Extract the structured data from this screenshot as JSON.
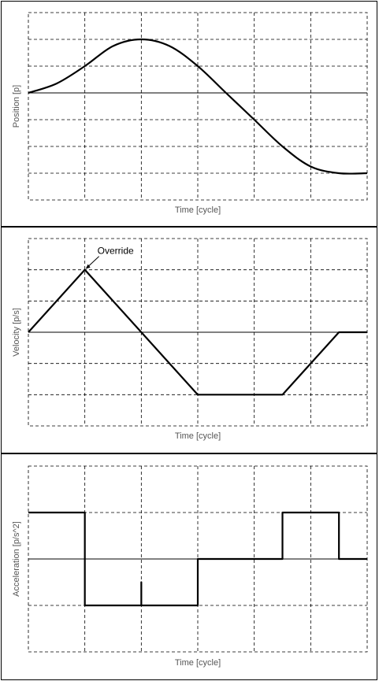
{
  "chart_data": [
    {
      "type": "line",
      "xlabel": "Time [cycle]",
      "ylabel": "Position [p]",
      "xlim": [
        0,
        6
      ],
      "ylim": [
        -4,
        3
      ],
      "grid": true,
      "series": [
        {
          "x": [
            0,
            0.5,
            1,
            1.5,
            2,
            2.5,
            3,
            3.5,
            4,
            4.5,
            5,
            5.5,
            6
          ],
          "y": [
            0,
            0.35,
            1,
            1.75,
            2,
            1.75,
            1,
            0,
            -1,
            -2,
            -2.75,
            -3,
            -3
          ]
        }
      ]
    },
    {
      "type": "line",
      "xlabel": "Time [cycle]",
      "ylabel": "Velocity [p/s]",
      "xlim": [
        0,
        6
      ],
      "ylim": [
        -3,
        3
      ],
      "grid": true,
      "series": [
        {
          "x": [
            0,
            1,
            2,
            3,
            4.5,
            5.5,
            6
          ],
          "y": [
            0,
            2,
            0,
            -2,
            -2,
            0,
            0
          ]
        }
      ],
      "annotations": [
        {
          "text": "Override",
          "x": 1,
          "y": 2
        }
      ]
    },
    {
      "type": "line",
      "xlabel": "Time [cycle]",
      "ylabel": "Acceleration [p/s^2]",
      "xlim": [
        0,
        6
      ],
      "ylim": [
        -2,
        2
      ],
      "grid": true,
      "series": [
        {
          "x": [
            0,
            1,
            1,
            2,
            2,
            2,
            2,
            3,
            3,
            4.5,
            4.5,
            5.5,
            5.5,
            6
          ],
          "y": [
            1,
            1,
            -1,
            -1,
            -0.5,
            -1,
            -1,
            -1,
            0,
            0,
            1,
            1,
            0,
            0
          ]
        }
      ]
    }
  ]
}
